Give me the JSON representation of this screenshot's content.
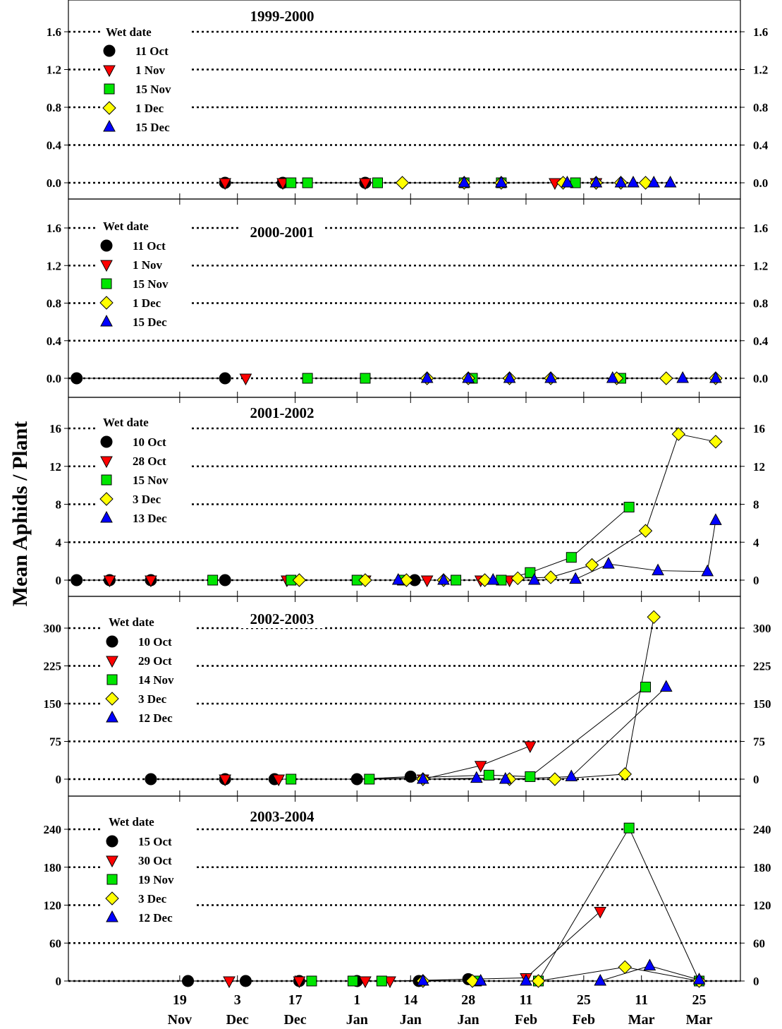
{
  "figure": {
    "ylabel": "Mean  Aphids / Plant",
    "xaxis": {
      "ticks": [
        {
          "day": 19,
          "line1": "19",
          "line2": "Nov"
        },
        {
          "day": 33,
          "line1": "3",
          "line2": "Dec"
        },
        {
          "day": 47,
          "line1": "17",
          "line2": "Dec"
        },
        {
          "day": 62,
          "line1": "1",
          "line2": "Jan"
        },
        {
          "day": 75,
          "line1": "14",
          "line2": "Jan"
        },
        {
          "day": 89,
          "line1": "28",
          "line2": "Jan"
        },
        {
          "day": 103,
          "line1": "11",
          "line2": "Feb"
        },
        {
          "day": 117,
          "line1": "25",
          "line2": "Feb"
        },
        {
          "day": 131,
          "line1": "11",
          "line2": "Mar"
        },
        {
          "day": 145,
          "line1": "25",
          "line2": "Mar"
        }
      ]
    },
    "colors": {
      "circle": "#000000",
      "triangle_down": "#ff0000",
      "square": "#00e600",
      "diamond": "#ffff00",
      "triangle_up": "#0000ff"
    }
  },
  "chart_data": [
    {
      "type": "line",
      "title": "1999-2000",
      "legend_title": "Wet date",
      "ylim": [
        0,
        1.6
      ],
      "yticks": [
        "0.0",
        "0.4",
        "0.8",
        "1.2",
        "1.6"
      ],
      "ytick_values": [
        0,
        0.4,
        0.8,
        1.2,
        1.6
      ],
      "series": [
        {
          "name": "11 Oct",
          "marker": "circle",
          "x": [
            30,
            44,
            64
          ],
          "y": [
            0,
            0,
            0
          ]
        },
        {
          "name": "1 Nov",
          "marker": "triangle_down",
          "x": [
            30,
            44,
            64,
            110,
            120
          ],
          "y": [
            0,
            0,
            0,
            0,
            0
          ]
        },
        {
          "name": "15 Nov",
          "marker": "square",
          "x": [
            46,
            50,
            67,
            88,
            97,
            115
          ],
          "y": [
            0,
            0,
            0,
            0,
            0,
            0
          ]
        },
        {
          "name": "1 Dec",
          "marker": "diamond",
          "x": [
            73,
            88,
            97,
            112,
            120,
            126,
            132
          ],
          "y": [
            0,
            0,
            0,
            0,
            0,
            0,
            0
          ]
        },
        {
          "name": "15 Dec",
          "marker": "triangle_up",
          "x": [
            88,
            97,
            113,
            120,
            126,
            129,
            134,
            138
          ],
          "y": [
            0,
            0,
            0,
            0,
            0,
            0,
            0,
            0
          ]
        }
      ]
    },
    {
      "type": "line",
      "title": "2000-2001",
      "legend_title": "Wet date",
      "ylim": [
        0,
        1.6
      ],
      "yticks": [
        "0.0",
        "0.4",
        "0.8",
        "1.2",
        "1.6"
      ],
      "ytick_values": [
        0,
        0.4,
        0.8,
        1.2,
        1.6
      ],
      "series": [
        {
          "name": "11 Oct",
          "marker": "circle",
          "x": [
            -6,
            30
          ],
          "y": [
            0,
            0
          ]
        },
        {
          "name": "1 Nov",
          "marker": "triangle_down",
          "x": [
            35
          ],
          "y": [
            0
          ]
        },
        {
          "name": "15 Nov",
          "marker": "square",
          "x": [
            50,
            64,
            90,
            126
          ],
          "y": [
            0,
            0,
            0,
            0
          ]
        },
        {
          "name": "1 Dec",
          "marker": "diamond",
          "x": [
            79,
            89,
            99,
            109,
            125,
            137,
            149
          ],
          "y": [
            0,
            0,
            0,
            0,
            0,
            0,
            0
          ]
        },
        {
          "name": "15 Dec",
          "marker": "triangle_up",
          "x": [
            79,
            89,
            99,
            109,
            124,
            141,
            149
          ],
          "y": [
            0,
            0,
            0,
            0,
            0,
            0,
            0
          ]
        }
      ]
    },
    {
      "type": "line",
      "title": "2001-2002",
      "legend_title": "Wet date",
      "ylim": [
        0,
        16
      ],
      "yticks": [
        "0",
        "4",
        "8",
        "12",
        "16"
      ],
      "ytick_values": [
        0,
        4,
        8,
        12,
        16
      ],
      "series": [
        {
          "name": "10 Oct",
          "marker": "circle",
          "x": [
            -6,
            2,
            12,
            30,
            76
          ],
          "y": [
            0,
            0,
            0,
            0,
            0
          ]
        },
        {
          "name": "28 Oct",
          "marker": "triangle_down",
          "x": [
            2,
            12,
            45,
            64,
            79,
            92,
            99
          ],
          "y": [
            0,
            0,
            0,
            0,
            0,
            0,
            0
          ]
        },
        {
          "name": "15 Nov",
          "marker": "square",
          "x": [
            27,
            46,
            62,
            73,
            86,
            97,
            104,
            114,
            128
          ],
          "y": [
            0,
            0,
            0,
            0,
            0,
            0,
            0.8,
            2.4,
            7.7
          ]
        },
        {
          "name": "3 Dec",
          "marker": "diamond",
          "x": [
            48,
            64,
            74,
            83,
            93,
            101,
            109,
            119,
            132,
            140,
            149
          ],
          "y": [
            0,
            0,
            0,
            0,
            0,
            0.2,
            0.3,
            1.6,
            5.2,
            15.4,
            14.6
          ]
        },
        {
          "name": "13 Dec",
          "marker": "triangle_up",
          "x": [
            72,
            83,
            95,
            105,
            115,
            123,
            135,
            147,
            149
          ],
          "y": [
            0,
            0,
            0,
            0,
            0.1,
            1.7,
            1.0,
            0.9,
            6.3
          ]
        }
      ]
    },
    {
      "type": "line",
      "title": "2002-2003",
      "legend_title": "Wet date",
      "ylim": [
        0,
        300
      ],
      "yticks": [
        "0",
        "75",
        "150",
        "225",
        "300"
      ],
      "ytick_values": [
        0,
        75,
        150,
        225,
        300
      ],
      "series": [
        {
          "name": "10 Oct",
          "marker": "circle",
          "x": [
            12,
            30,
            42,
            62,
            75
          ],
          "y": [
            0,
            0,
            0,
            0,
            5
          ]
        },
        {
          "name": "29 Oct",
          "marker": "triangle_down",
          "x": [
            30,
            43,
            78,
            92,
            104
          ],
          "y": [
            0,
            0,
            0,
            27,
            66
          ]
        },
        {
          "name": "14 Nov",
          "marker": "square",
          "x": [
            46,
            65,
            94,
            104,
            132
          ],
          "y": [
            0,
            0,
            8,
            5,
            183
          ]
        },
        {
          "name": "3 Dec",
          "marker": "diamond",
          "x": [
            78,
            99,
            110,
            127,
            134
          ],
          "y": [
            0,
            0,
            0,
            10,
            322
          ]
        },
        {
          "name": "12 Dec",
          "marker": "triangle_up",
          "x": [
            78,
            91,
            98,
            114,
            137
          ],
          "y": [
            0,
            2,
            0,
            5,
            183
          ]
        }
      ]
    },
    {
      "type": "line",
      "title": "2003-2004",
      "legend_title": "Wet date",
      "ylim": [
        0,
        240
      ],
      "yticks": [
        "0",
        "60",
        "120",
        "180",
        "240"
      ],
      "ytick_values": [
        0,
        60,
        120,
        180,
        240
      ],
      "series": [
        {
          "name": "15 Oct",
          "marker": "circle",
          "x": [
            21,
            35,
            48,
            62,
            77,
            89
          ],
          "y": [
            0,
            0,
            0,
            0,
            0,
            3
          ]
        },
        {
          "name": "30 Oct",
          "marker": "triangle_down",
          "x": [
            31,
            48,
            64,
            70,
            103,
            121
          ],
          "y": [
            0,
            0,
            0,
            0,
            5,
            110
          ]
        },
        {
          "name": "19 Nov",
          "marker": "square",
          "x": [
            51,
            61,
            68,
            91,
            106,
            128,
            145
          ],
          "y": [
            0,
            0,
            0,
            0,
            0,
            242,
            0
          ]
        },
        {
          "name": "3 Dec",
          "marker": "diamond",
          "x": [
            78,
            90,
            106,
            127,
            145
          ],
          "y": [
            0,
            0,
            0,
            22,
            0
          ]
        },
        {
          "name": "12 Dec",
          "marker": "triangle_up",
          "x": [
            78,
            92,
            103,
            121,
            133,
            145
          ],
          "y": [
            0,
            0,
            0,
            0,
            24,
            2
          ]
        }
      ]
    }
  ]
}
